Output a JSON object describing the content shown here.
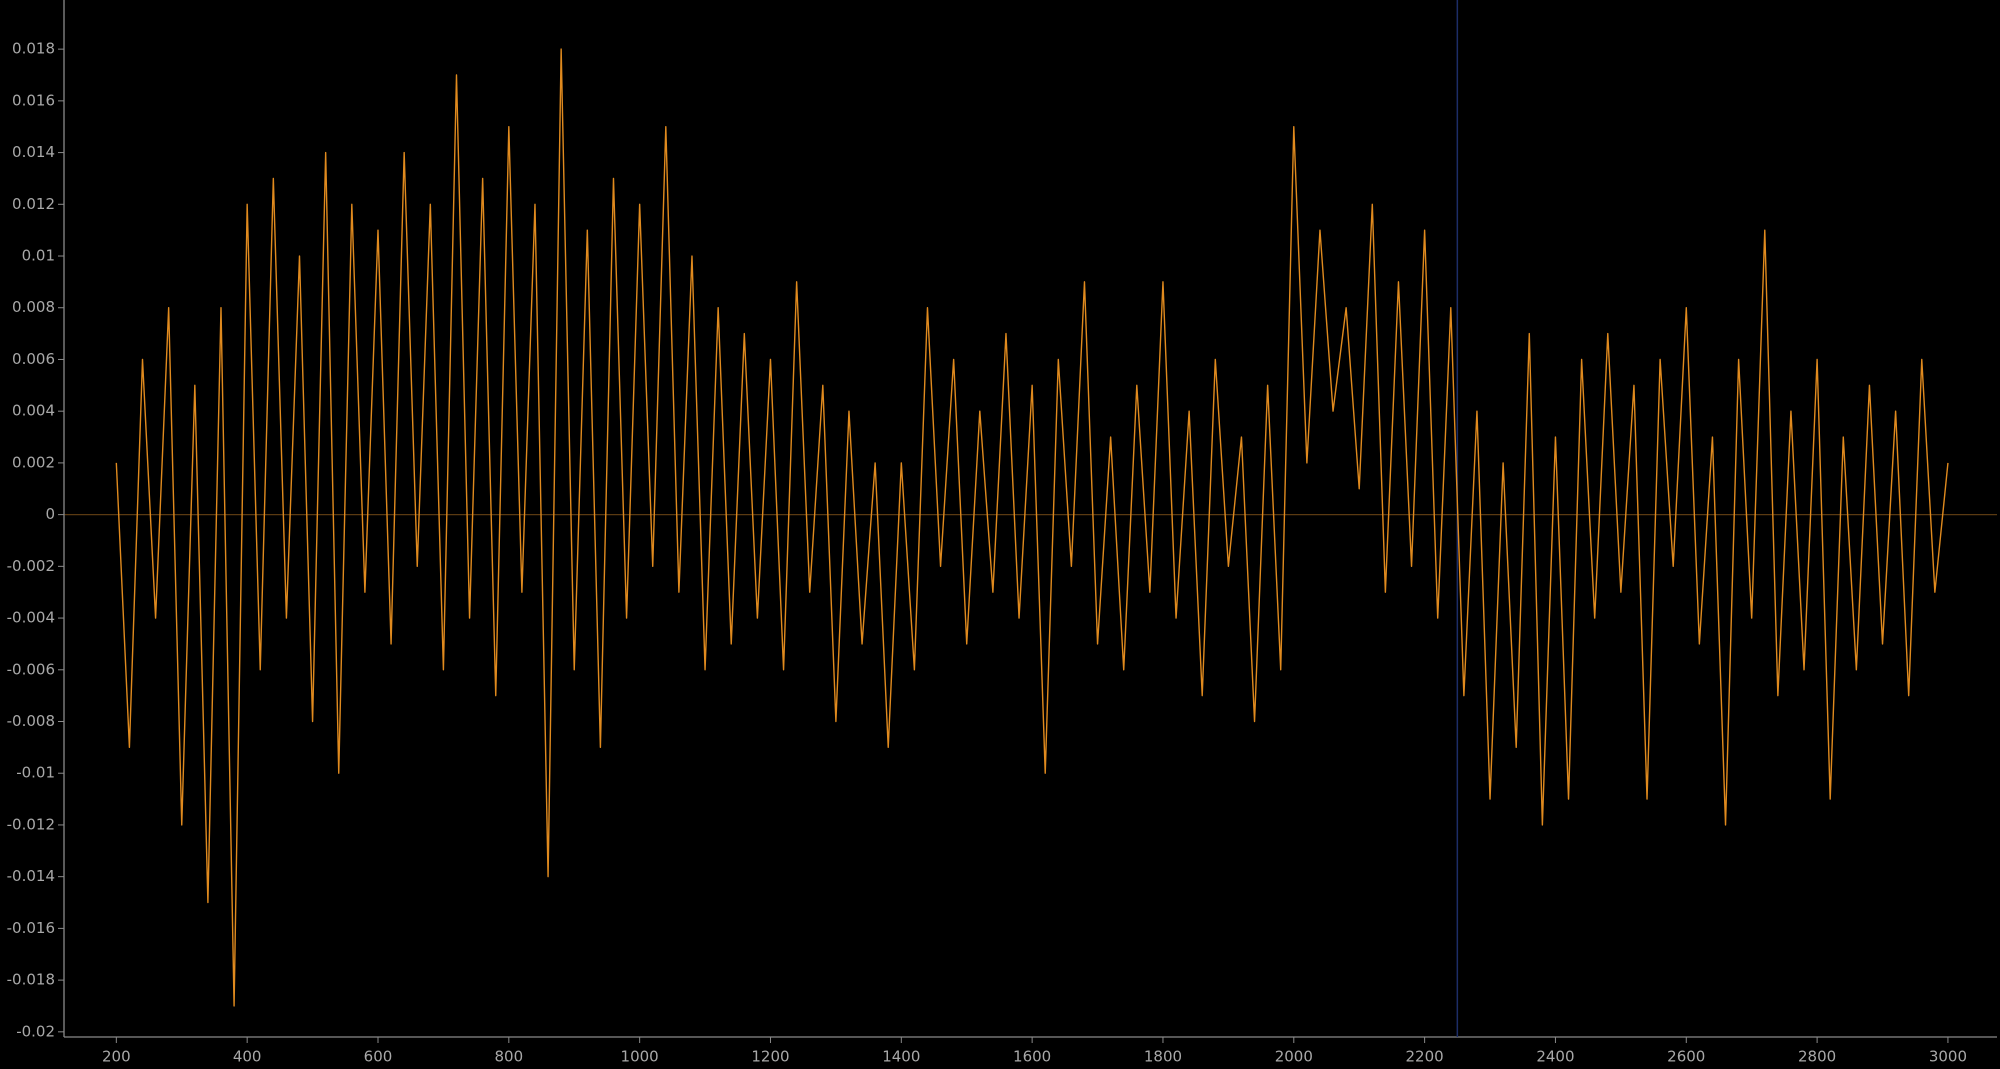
{
  "chart_data": {
    "type": "line",
    "x": [
      200,
      220,
      240,
      260,
      280,
      300,
      320,
      340,
      360,
      380,
      400,
      420,
      440,
      460,
      480,
      500,
      520,
      540,
      560,
      580,
      600,
      620,
      640,
      660,
      680,
      700,
      720,
      740,
      760,
      780,
      800,
      820,
      840,
      860,
      880,
      900,
      920,
      940,
      960,
      980,
      1000,
      1020,
      1040,
      1060,
      1080,
      1100,
      1120,
      1140,
      1160,
      1180,
      1200,
      1220,
      1240,
      1260,
      1280,
      1300,
      1320,
      1340,
      1360,
      1380,
      1400,
      1420,
      1440,
      1460,
      1480,
      1500,
      1520,
      1540,
      1560,
      1580,
      1600,
      1620,
      1640,
      1660,
      1680,
      1700,
      1720,
      1740,
      1760,
      1780,
      1800,
      1820,
      1840,
      1860,
      1880,
      1900,
      1920,
      1940,
      1960,
      1980,
      2000,
      2020,
      2040,
      2060,
      2080,
      2100,
      2120,
      2140,
      2160,
      2180,
      2200,
      2220,
      2240,
      2260,
      2280,
      2300,
      2320,
      2340,
      2360,
      2380,
      2400,
      2420,
      2440,
      2460,
      2480,
      2500,
      2520,
      2540,
      2560,
      2580,
      2600,
      2620,
      2640,
      2660,
      2680,
      2700,
      2720,
      2740,
      2760,
      2780,
      2800,
      2820,
      2840,
      2860,
      2880,
      2900,
      2920,
      2940,
      2960,
      2980,
      3000
    ],
    "series": [
      {
        "color": "#e08a1e",
        "values": [
          0.002,
          -0.009,
          0.006,
          -0.004,
          0.008,
          -0.012,
          0.005,
          -0.015,
          0.008,
          -0.019,
          0.012,
          -0.006,
          0.013,
          -0.004,
          0.01,
          -0.008,
          0.014,
          -0.01,
          0.012,
          -0.003,
          0.011,
          -0.005,
          0.014,
          -0.002,
          0.012,
          -0.006,
          0.017,
          -0.004,
          0.013,
          -0.007,
          0.015,
          -0.003,
          0.012,
          -0.014,
          0.018,
          -0.006,
          0.011,
          -0.009,
          0.013,
          -0.004,
          0.012,
          -0.002,
          0.015,
          -0.003,
          0.01,
          -0.006,
          0.008,
          -0.005,
          0.007,
          -0.004,
          0.006,
          -0.006,
          0.009,
          -0.003,
          0.005,
          -0.008,
          0.004,
          -0.005,
          0.002,
          -0.009,
          0.002,
          -0.006,
          0.008,
          -0.002,
          0.006,
          -0.005,
          0.004,
          -0.003,
          0.007,
          -0.004,
          0.005,
          -0.01,
          0.006,
          -0.002,
          0.009,
          -0.005,
          0.003,
          -0.006,
          0.005,
          -0.003,
          0.009,
          -0.004,
          0.004,
          -0.007,
          0.006,
          -0.002,
          0.003,
          -0.008,
          0.005,
          -0.006,
          0.015,
          0.002,
          0.011,
          0.004,
          0.008,
          0.001,
          0.012,
          -0.003,
          0.009,
          -0.002,
          0.011,
          -0.004,
          0.008,
          -0.007,
          0.004,
          -0.011,
          0.002,
          -0.009,
          0.007,
          -0.012,
          0.003,
          -0.011,
          0.006,
          -0.004,
          0.007,
          -0.003,
          0.005,
          -0.011,
          0.006,
          -0.002,
          0.008,
          -0.005,
          0.003,
          -0.012,
          0.006,
          -0.004,
          0.011,
          -0.007,
          0.004,
          -0.006,
          0.006,
          -0.011,
          0.003,
          -0.006,
          0.005,
          -0.005,
          0.004,
          -0.007,
          0.006,
          -0.003,
          0.002
        ]
      }
    ],
    "xlim": [
      120,
      3075
    ],
    "ylim": [
      -0.0202,
      0.0199
    ],
    "xticks": [
      200,
      400,
      600,
      800,
      1000,
      1200,
      1400,
      1600,
      1800,
      2000,
      2200,
      2400,
      2600,
      2800,
      3000
    ],
    "yticks": [
      -0.02,
      -0.018,
      -0.016,
      -0.014,
      -0.012,
      -0.01,
      -0.008,
      -0.006,
      -0.004,
      -0.002,
      0,
      0.002,
      0.004,
      0.006,
      0.008,
      0.01,
      0.012,
      0.014,
      0.016,
      0.018
    ],
    "cursor_x": 2250
  }
}
